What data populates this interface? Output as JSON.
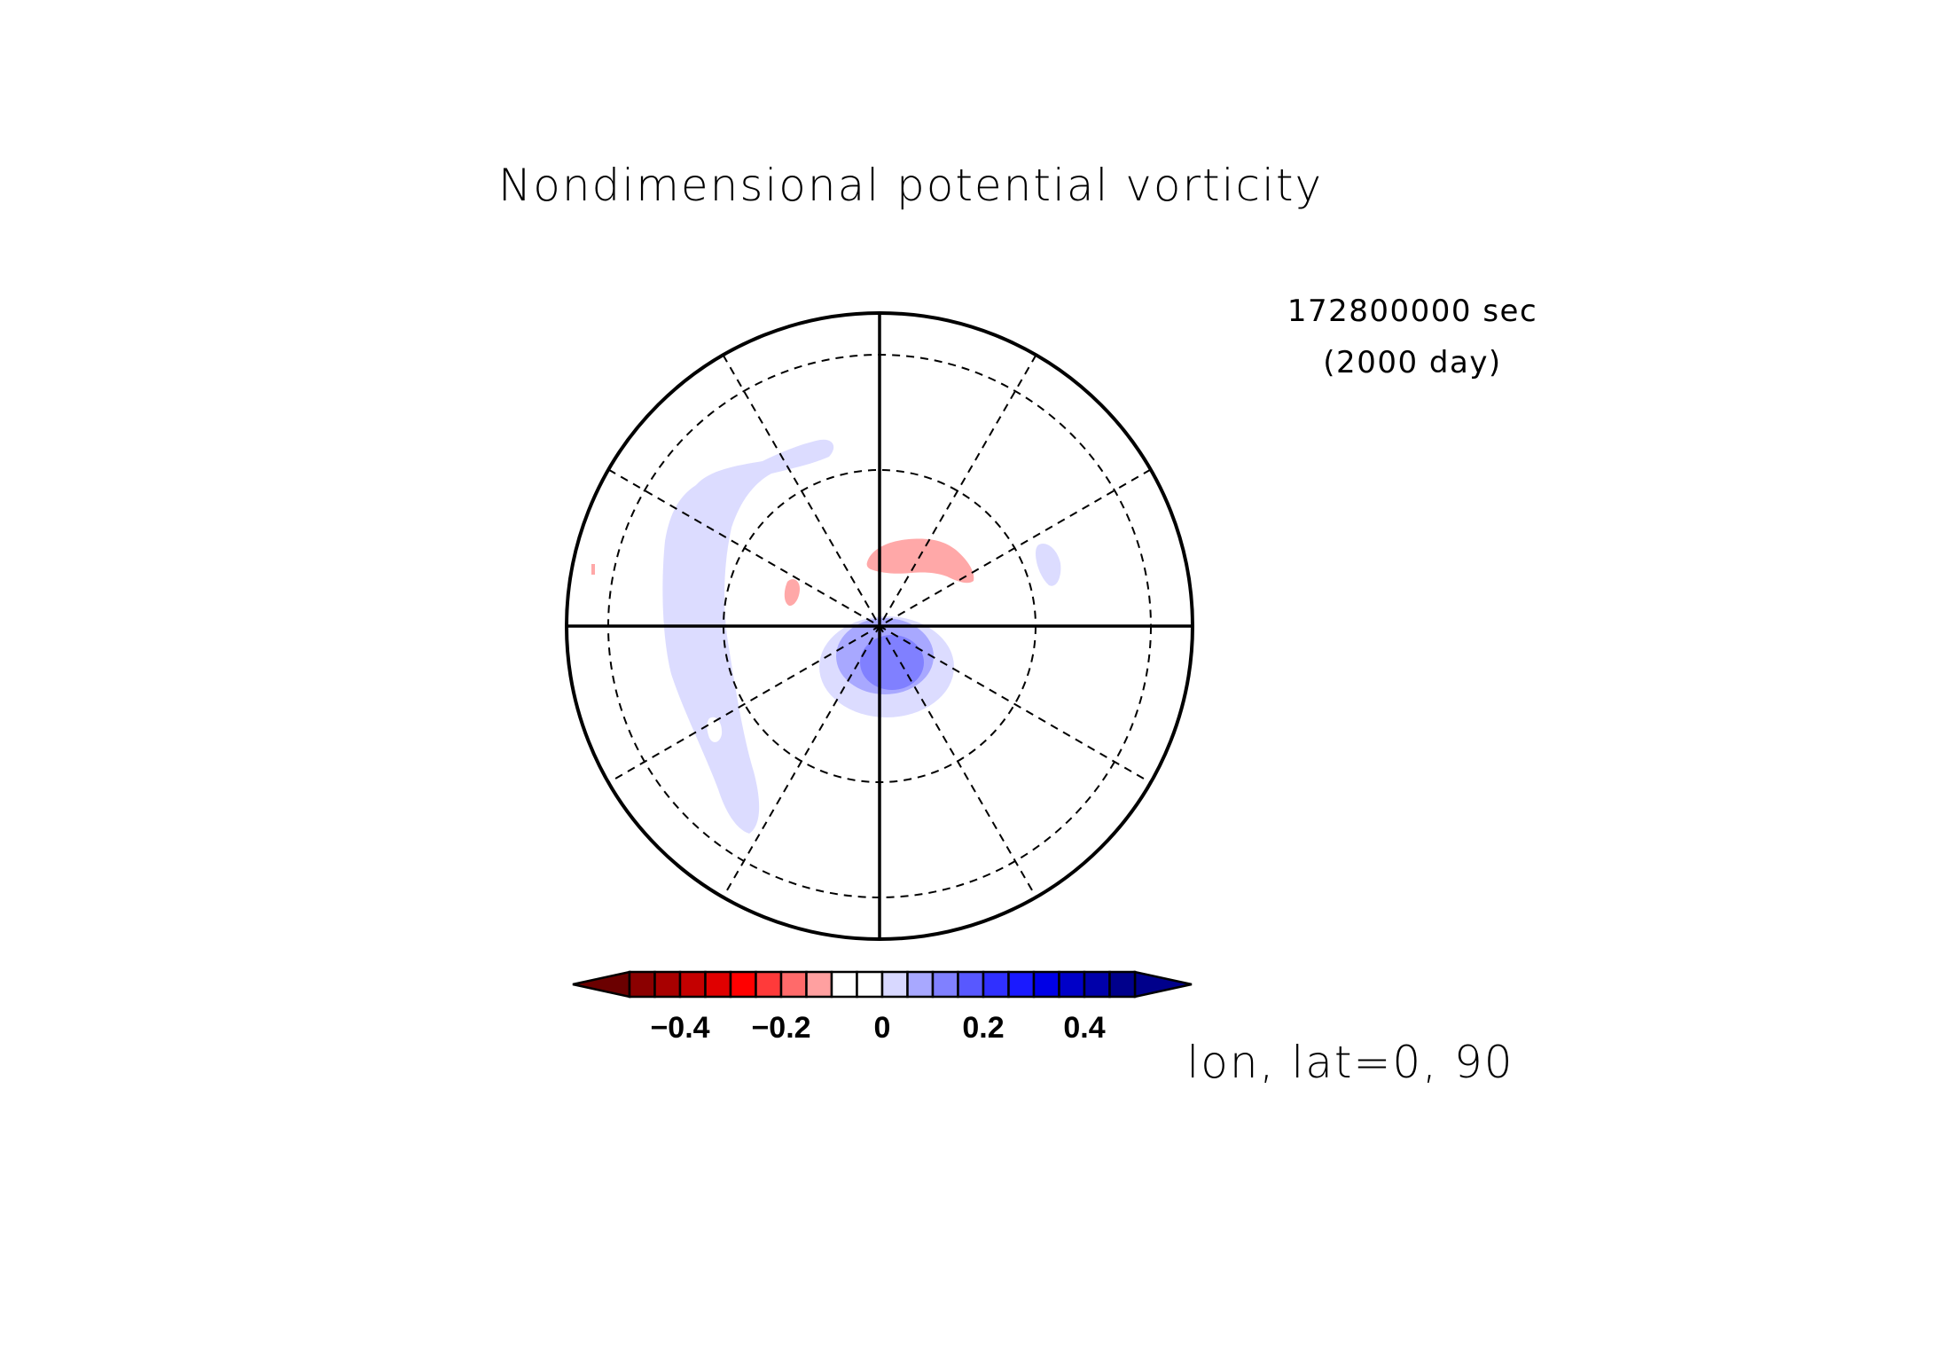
{
  "chart_data": {
    "type": "heatmap",
    "projection": "polar-stereographic",
    "title": "Nondimensional potential vorticity",
    "time_label": "172800000 sec",
    "day_label": "(2000 day)",
    "center_label": "lon, lat=0, 90",
    "colorbar": {
      "levels": [
        -0.5,
        -0.45,
        -0.4,
        -0.35,
        -0.3,
        -0.25,
        -0.2,
        -0.15,
        -0.1,
        -0.05,
        0,
        0.05,
        0.1,
        0.15,
        0.2,
        0.25,
        0.3,
        0.35,
        0.4,
        0.45,
        0.5
      ],
      "tick_labels": [
        "−0.4",
        "−0.2",
        "0",
        "0.2",
        "0.4"
      ],
      "tick_values": [
        -0.4,
        -0.2,
        0,
        0.2,
        0.4
      ],
      "under_color": "#6b0000",
      "over_color": "#00008b",
      "colors": [
        "#8b0000",
        "#a80000",
        "#c40000",
        "#e00000",
        "#ff0000",
        "#ff3a3a",
        "#ff6a6a",
        "#ffa0a0",
        "#ffffff",
        "#ffffff",
        "#d8d8ff",
        "#a8a8ff",
        "#8080ff",
        "#5858ff",
        "#3030ff",
        "#1a1aff",
        "#0000e6",
        "#0000c8",
        "#0000aa",
        "#00008b"
      ],
      "extend": "both"
    },
    "grid": {
      "meridian_step_deg": 30,
      "latitude_circles": [
        60,
        30
      ],
      "outer_latitude": 0,
      "line_style": "dashed"
    },
    "features": [
      {
        "name": "negative-anomaly-large-lobe",
        "sign": "positive",
        "approx_value": 0.05,
        "location": "west side, ~lat 15–45"
      },
      {
        "name": "positive-core",
        "sign": "positive",
        "approx_value": 0.15,
        "location": "near pole, slightly south"
      },
      {
        "name": "red-blob-north",
        "sign": "negative",
        "approx_value": -0.1,
        "location": "north-east of pole, ~lat 60"
      },
      {
        "name": "small-red-west",
        "sign": "negative",
        "approx_value": -0.1,
        "location": "west of pole, ~lat 65"
      },
      {
        "name": "small-blue-east",
        "sign": "positive",
        "approx_value": 0.05,
        "location": "east, ~lat 40"
      }
    ]
  }
}
